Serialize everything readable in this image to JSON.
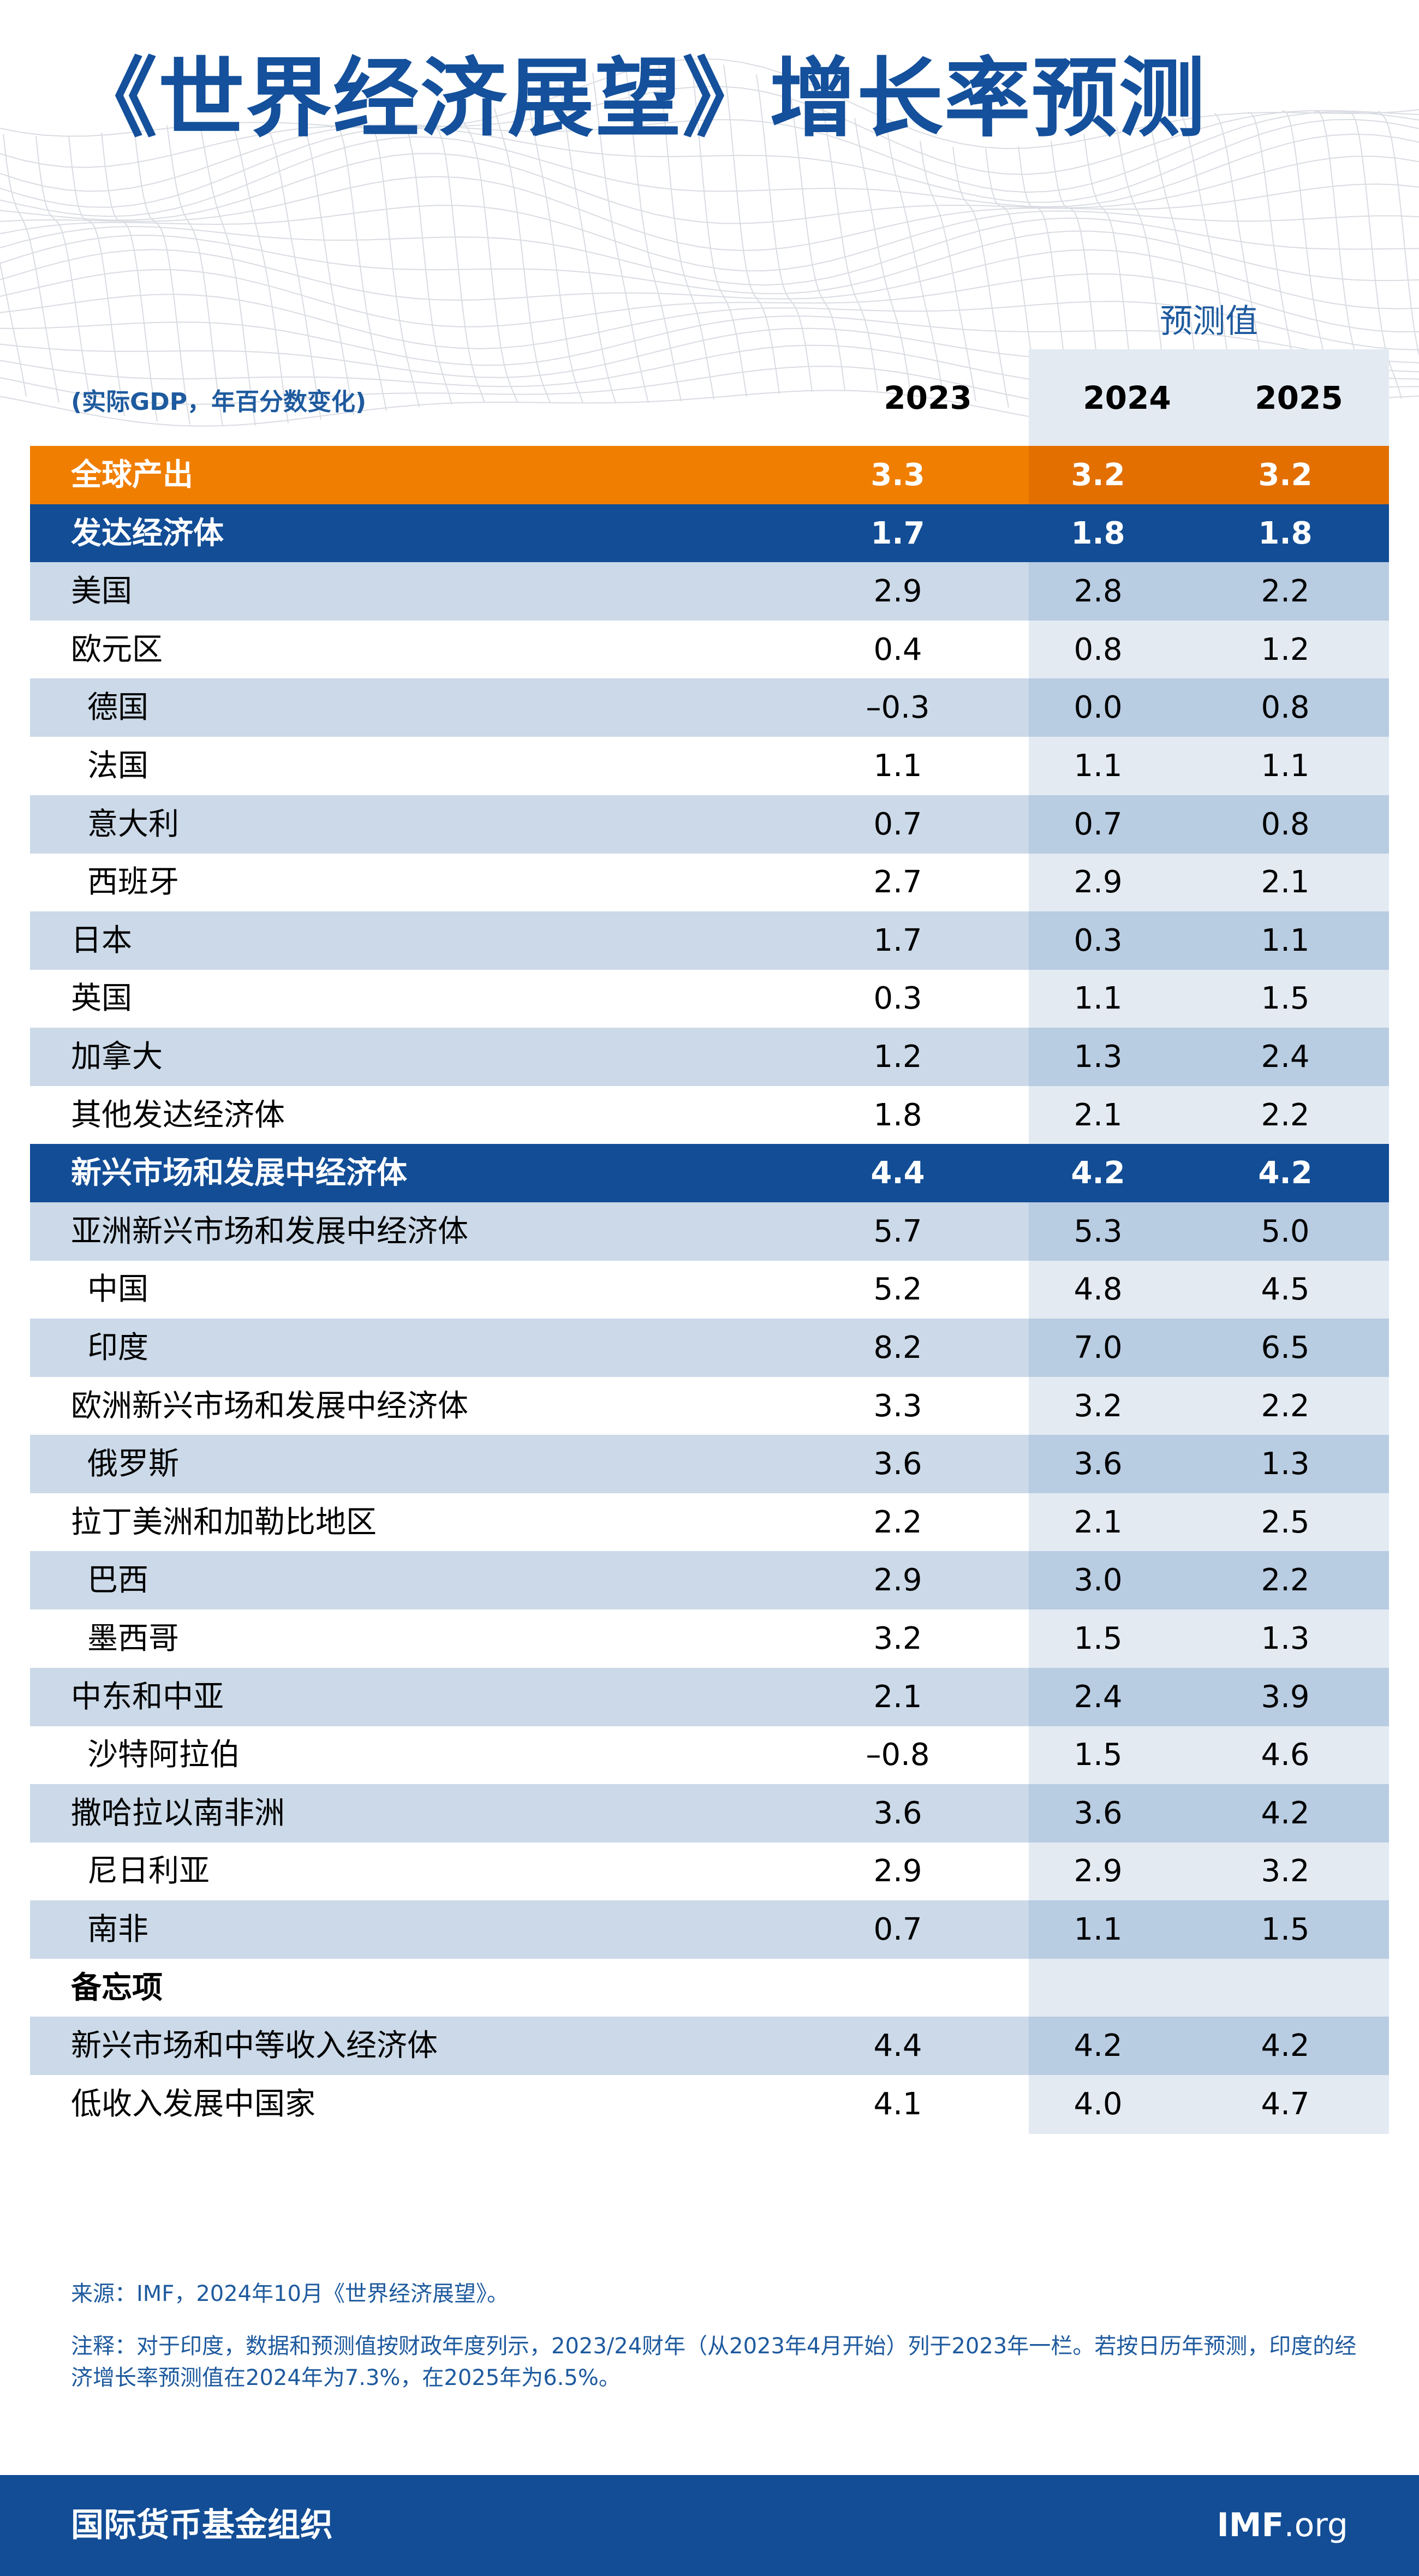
{
  "page": {
    "title": "《世界经济展望》增长率预测",
    "forecast_label": "预测值",
    "units_label": "(实际GDP，年百分数变化)",
    "source": "来源：IMF，2024年10月《世界经济展望》。",
    "note": "注释：对于印度，数据和预测值按财政年度列示，2023/24财年（从2023年4月开始）列于2023年一栏。若按日历年预测，印度的经济增长率预测值在2024年为7.3%，在2025年为6.5%。",
    "footer_org": "国际货币基金组织",
    "footer_site_bold": "IMF",
    "footer_site_rest": ".org"
  },
  "colors": {
    "primary_blue": "#124d96",
    "title_blue": "#14509b",
    "world_orange": "#f07e00",
    "shade_row": "#cbd9e8",
    "forecast_panel": "#e3eaf2"
  },
  "chart_data": {
    "type": "table",
    "title": "《世界经济展望》增长率预测",
    "columns": [
      "2023",
      "2024",
      "2025"
    ],
    "forecast_columns": [
      "2024",
      "2025"
    ],
    "rows": [
      {
        "label": "全球产出",
        "values": [
          "3.3",
          "3.2",
          "3.2"
        ],
        "style": "world"
      },
      {
        "label": "发达经济体",
        "values": [
          "1.7",
          "1.8",
          "1.8"
        ],
        "style": "group"
      },
      {
        "label": "美国",
        "values": [
          "2.9",
          "2.8",
          "2.2"
        ],
        "style": "shade"
      },
      {
        "label": "欧元区",
        "values": [
          "0.4",
          "0.8",
          "1.2"
        ],
        "style": "plain"
      },
      {
        "label": "德国",
        "values": [
          "–0.3",
          "0.0",
          "0.8"
        ],
        "style": "shade",
        "indent": true
      },
      {
        "label": "法国",
        "values": [
          "1.1",
          "1.1",
          "1.1"
        ],
        "style": "plain",
        "indent": true
      },
      {
        "label": "意大利",
        "values": [
          "0.7",
          "0.7",
          "0.8"
        ],
        "style": "shade",
        "indent": true
      },
      {
        "label": "西班牙",
        "values": [
          "2.7",
          "2.9",
          "2.1"
        ],
        "style": "plain",
        "indent": true
      },
      {
        "label": "日本",
        "values": [
          "1.7",
          "0.3",
          "1.1"
        ],
        "style": "shade"
      },
      {
        "label": "英国",
        "values": [
          "0.3",
          "1.1",
          "1.5"
        ],
        "style": "plain"
      },
      {
        "label": "加拿大",
        "values": [
          "1.2",
          "1.3",
          "2.4"
        ],
        "style": "shade"
      },
      {
        "label": "其他发达经济体",
        "values": [
          "1.8",
          "2.1",
          "2.2"
        ],
        "style": "plain"
      },
      {
        "label": "新兴市场和发展中经济体",
        "values": [
          "4.4",
          "4.2",
          "4.2"
        ],
        "style": "group"
      },
      {
        "label": "亚洲新兴市场和发展中经济体",
        "values": [
          "5.7",
          "5.3",
          "5.0"
        ],
        "style": "shade"
      },
      {
        "label": "中国",
        "values": [
          "5.2",
          "4.8",
          "4.5"
        ],
        "style": "plain",
        "indent": true
      },
      {
        "label": "印度",
        "values": [
          "8.2",
          "7.0",
          "6.5"
        ],
        "style": "shade",
        "indent": true
      },
      {
        "label": "欧洲新兴市场和发展中经济体",
        "values": [
          "3.3",
          "3.2",
          "2.2"
        ],
        "style": "plain"
      },
      {
        "label": "俄罗斯",
        "values": [
          "3.6",
          "3.6",
          "1.3"
        ],
        "style": "shade",
        "indent": true
      },
      {
        "label": "拉丁美洲和加勒比地区",
        "values": [
          "2.2",
          "2.1",
          "2.5"
        ],
        "style": "plain"
      },
      {
        "label": "巴西",
        "values": [
          "2.9",
          "3.0",
          "2.2"
        ],
        "style": "shade",
        "indent": true
      },
      {
        "label": "墨西哥",
        "values": [
          "3.2",
          "1.5",
          "1.3"
        ],
        "style": "plain",
        "indent": true
      },
      {
        "label": "中东和中亚",
        "values": [
          "2.1",
          "2.4",
          "3.9"
        ],
        "style": "shade"
      },
      {
        "label": "沙特阿拉伯",
        "values": [
          "–0.8",
          "1.5",
          "4.6"
        ],
        "style": "plain",
        "indent": true
      },
      {
        "label": "撒哈拉以南非洲",
        "values": [
          "3.6",
          "3.6",
          "4.2"
        ],
        "style": "shade"
      },
      {
        "label": "尼日利亚",
        "values": [
          "2.9",
          "2.9",
          "3.2"
        ],
        "style": "plain",
        "indent": true
      },
      {
        "label": "南非",
        "values": [
          "0.7",
          "1.1",
          "1.5"
        ],
        "style": "shade",
        "indent": true
      },
      {
        "label": "备忘项",
        "values": [
          "",
          "",
          ""
        ],
        "style": "memo"
      },
      {
        "label": "新兴市场和中等收入经济体",
        "values": [
          "4.4",
          "4.2",
          "4.2"
        ],
        "style": "shade"
      },
      {
        "label": "低收入发展中国家",
        "values": [
          "4.1",
          "4.0",
          "4.7"
        ],
        "style": "plain"
      }
    ]
  }
}
